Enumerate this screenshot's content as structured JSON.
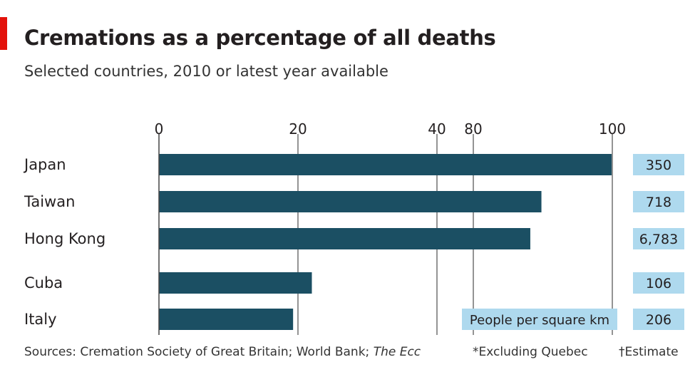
{
  "title": "Cremations as a percentage of all deaths",
  "subtitle": "Selected countries, 2010 or latest year available",
  "source": {
    "prefix": "Sources: Cremation Society of Great Britain; World Bank;",
    "italic": "The Ecc",
    "note1": "*Excluding Quebec",
    "note2": "†Estimate"
  },
  "density_label": "People per square km",
  "colors": {
    "bar": "#1b4f63",
    "density_box": "#aed9ee",
    "accent": "#e3120b"
  },
  "chart_data": {
    "type": "bar",
    "orientation": "horizontal",
    "categories": [
      "Japan",
      "Taiwan",
      "Hong Kong",
      "Cuba",
      "Italy"
    ],
    "values": [
      99.9,
      89.8,
      88.2,
      22.0,
      19.3
    ],
    "people_per_sq_km": [
      "350",
      "718",
      "6,783",
      "106",
      "206"
    ],
    "xaxis_tick_labels": [
      "0",
      "20",
      "40",
      "80",
      "100"
    ],
    "xaxis_break": "axis jumps from 40 to 80",
    "grid": true
  }
}
